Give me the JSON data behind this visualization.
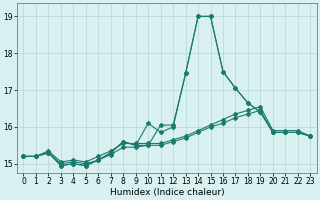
{
  "xlabel": "Humidex (Indice chaleur)",
  "x": [
    0,
    1,
    2,
    3,
    4,
    5,
    6,
    7,
    8,
    9,
    10,
    11,
    12,
    13,
    14,
    15,
    16,
    17,
    18,
    19,
    20,
    21,
    22,
    23
  ],
  "line1": [
    15.2,
    15.2,
    15.3,
    14.95,
    15.0,
    14.95,
    15.1,
    15.3,
    15.6,
    15.5,
    16.1,
    15.85,
    16.0,
    17.45,
    19.0,
    19.0,
    17.5,
    17.05,
    16.65,
    16.4,
    15.85,
    15.85,
    15.85,
    15.75
  ],
  "line2": [
    15.2,
    15.2,
    15.3,
    14.95,
    15.0,
    14.95,
    15.1,
    15.3,
    15.6,
    15.5,
    15.5,
    16.05,
    16.05,
    17.45,
    19.0,
    19.0,
    17.5,
    17.05,
    16.65,
    16.4,
    15.85,
    15.85,
    15.85,
    15.75
  ],
  "line3": [
    15.2,
    15.2,
    15.35,
    15.05,
    15.1,
    15.05,
    15.2,
    15.35,
    15.55,
    15.55,
    15.55,
    15.55,
    15.65,
    15.75,
    15.9,
    16.05,
    16.2,
    16.35,
    16.45,
    16.55,
    15.9,
    15.9,
    15.9,
    15.75
  ],
  "line4": [
    15.2,
    15.2,
    15.3,
    15.0,
    15.05,
    15.0,
    15.1,
    15.25,
    15.45,
    15.45,
    15.5,
    15.5,
    15.6,
    15.7,
    15.85,
    16.0,
    16.1,
    16.25,
    16.35,
    16.45,
    15.85,
    15.85,
    15.85,
    15.75
  ],
  "ylim": [
    14.75,
    19.35
  ],
  "yticks": [
    15,
    16,
    17,
    18,
    19
  ],
  "xticks": [
    0,
    1,
    2,
    3,
    4,
    5,
    6,
    7,
    8,
    9,
    10,
    11,
    12,
    13,
    14,
    15,
    16,
    17,
    18,
    19,
    20,
    21,
    22,
    23
  ],
  "line_color": "#1a7a6e",
  "bg_color": "#d8f0f0",
  "grid_color": "#b8d4d4",
  "markersize": 2.0,
  "linewidth": 0.8
}
